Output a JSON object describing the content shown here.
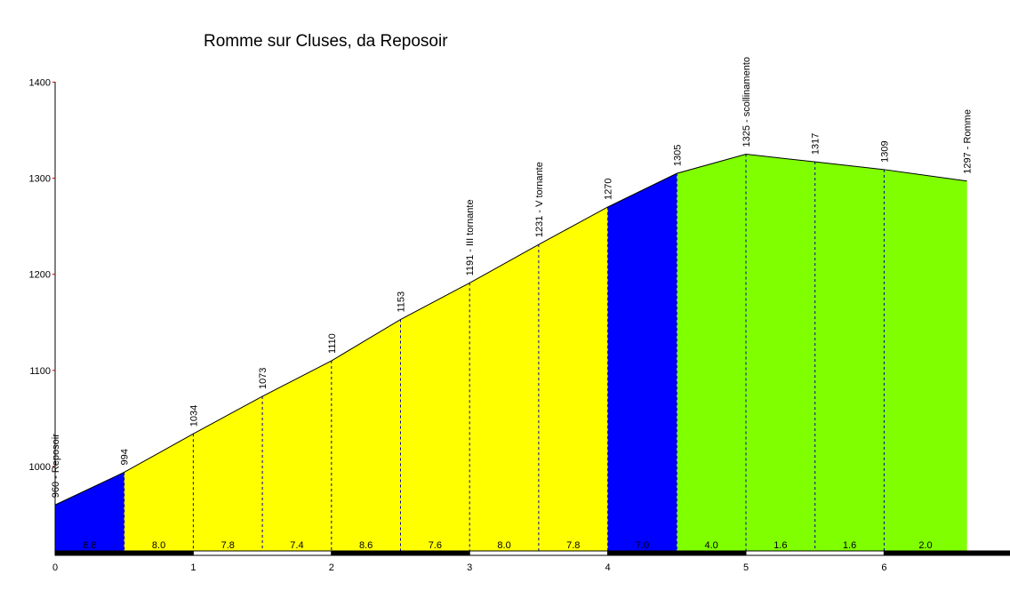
{
  "chart_data": {
    "type": "area",
    "title": "Romme sur Cluses, da Reposoir",
    "xlabel": "",
    "ylabel": "",
    "xlim": [
      0,
      7
    ],
    "ylim": [
      910,
      1400
    ],
    "y_ticks": [
      "1000",
      "1100",
      "1200",
      "1300",
      "1400"
    ],
    "x_ticks": [
      "0",
      "1",
      "2",
      "3",
      "4",
      "5",
      "6"
    ],
    "x": [
      0,
      0.5,
      1.0,
      1.5,
      2.0,
      2.5,
      3.0,
      3.5,
      4.0,
      4.5,
      5.0,
      5.5,
      6.0,
      6.6
    ],
    "altitudes": [
      960,
      994,
      1034,
      1073,
      1110,
      1153,
      1191,
      1231,
      1270,
      1305,
      1325,
      1317,
      1309,
      1297
    ],
    "point_labels": [
      "960 - Reposoir",
      "994",
      "1034",
      "1073",
      "1110",
      "1153",
      "1191 - III  tornante",
      "1231 - V  tornante",
      "1270",
      "1305",
      "1325 - scollinamento",
      "1317",
      "1309",
      "1297 - Romme"
    ],
    "segment_gradients": [
      "6.8",
      "8.0",
      "7.8",
      "7.4",
      "8.6",
      "7.6",
      "8.0",
      "7.8",
      "7.0",
      "4.0",
      "1.6",
      "1.6",
      "2.0"
    ],
    "segment_colors": [
      "#0000ff",
      "#ffff00",
      "#ffff00",
      "#ffff00",
      "#ffff00",
      "#ffff00",
      "#ffff00",
      "#ffff00",
      "#0000ff",
      "#80ff00",
      "#80ff00",
      "#80ff00",
      "#80ff00"
    ],
    "grid": false
  }
}
